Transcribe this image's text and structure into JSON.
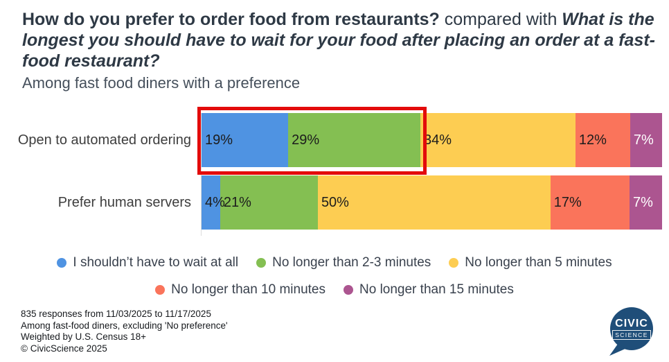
{
  "title": {
    "bold_part": "How do you prefer to order food from restaurants?",
    "connector": " compared with ",
    "italic_part": "What is the longest you should have to wait for your food after placing an order at a fast-food restaurant?",
    "subtitle": "Among fast food diners with a preference"
  },
  "chart_data": {
    "type": "bar",
    "orientation": "horizontal",
    "stacked": true,
    "unit": "percent",
    "xlim": [
      0,
      100
    ],
    "grid": false,
    "legend_position": "bottom",
    "categories": [
      "Open to automated ordering",
      "Prefer human servers"
    ],
    "series": [
      {
        "name": "I shouldn’t have to wait at all",
        "color": "#4f93e2",
        "label_color": "#1c1c1c",
        "values": [
          19,
          4
        ]
      },
      {
        "name": "No longer than 2-3 minutes",
        "color": "#84bf52",
        "label_color": "#1c1c1c",
        "values": [
          29,
          21
        ]
      },
      {
        "name": "No longer than 5 minutes",
        "color": "#fdcd52",
        "label_color": "#1c1c1c",
        "values": [
          34,
          50
        ]
      },
      {
        "name": "No longer than 10 minutes",
        "color": "#fa745b",
        "label_color": "#1c1c1c",
        "values": [
          12,
          17
        ]
      },
      {
        "name": "No longer than 15 minutes",
        "color": "#ac5590",
        "label_color": "#ffffff",
        "values": [
          7,
          7
        ]
      }
    ],
    "data_labels": [
      [
        "19%",
        "29%",
        "34%",
        "12%",
        "7%"
      ],
      [
        "4%",
        "21%",
        "50%",
        "17%",
        "7%"
      ]
    ],
    "annotation": {
      "type": "highlight-rectangle",
      "color": "#e30b0b",
      "target": "Open to automated ordering — first two segments (19% + 29%)"
    }
  },
  "legend_rows": [
    3,
    2
  ],
  "footer": {
    "lines": [
      "835 responses from 11/03/2025 to 11/17/2025",
      "Among fast-food diners, excluding 'No preference'",
      "Weighted by U.S. Census 18+",
      "© CivicScience 2025"
    ]
  },
  "logo": {
    "line1": "CIVIC",
    "line2": "SCIENCE",
    "color": "#1f4e79"
  }
}
